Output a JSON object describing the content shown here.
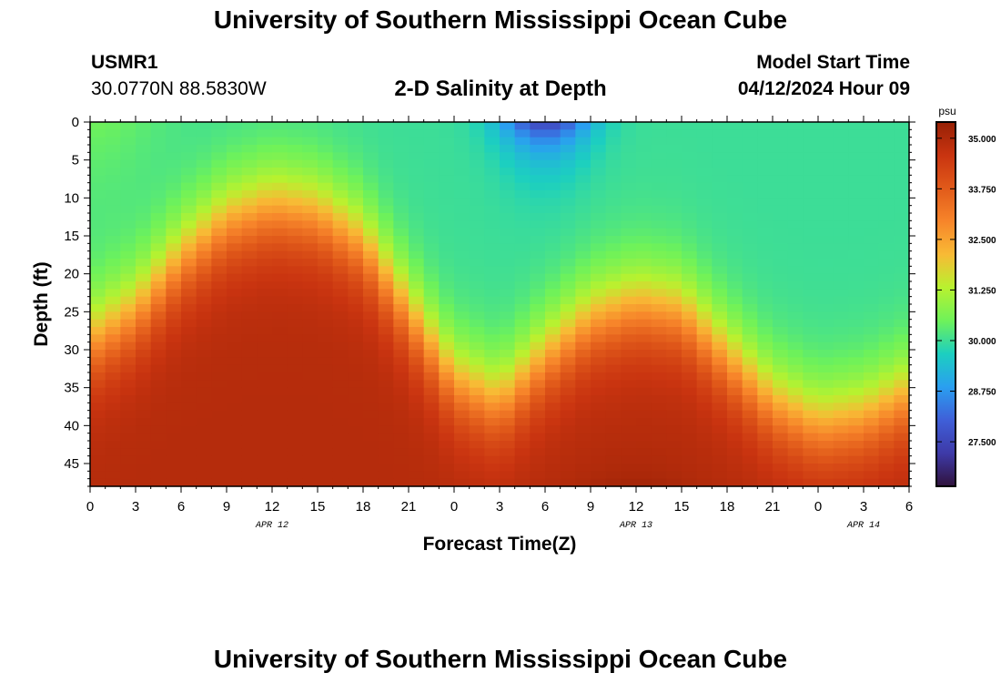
{
  "page": {
    "title_top": "University of Southern Mississippi Ocean Cube",
    "title_bottom": "University of Southern Mississippi Ocean Cube",
    "station_id": "USMR1",
    "station_coords": "30.0770N  88.5830W",
    "chart_title": "2-D Salinity at Depth",
    "model_start_label": "Model Start Time",
    "model_start_value": "04/12/2024 Hour 09"
  },
  "colors": {
    "background": "#ffffff",
    "colormap": [
      "#30123b",
      "#3e3aa8",
      "#3f5fd8",
      "#2a9ff0",
      "#1ccfc0",
      "#6ef25a",
      "#b8f22f",
      "#f8ba35",
      "#f7852a",
      "#e15a1a",
      "#c93410",
      "#962005"
    ]
  },
  "chart_data": {
    "type": "heatmap",
    "title": "2-D Salinity at Depth",
    "xlabel": "Forecast Time(Z)",
    "ylabel": "Depth (ft)",
    "x_tick_labels": [
      "0",
      "3",
      "6",
      "9",
      "12",
      "15",
      "18",
      "21",
      "0",
      "3",
      "6",
      "9",
      "12",
      "15",
      "18",
      "21",
      "0",
      "3",
      "6"
    ],
    "x_hours_from_start": [
      0,
      3,
      6,
      9,
      12,
      15,
      18,
      21,
      24,
      27,
      30,
      33,
      36,
      39,
      42,
      45,
      48,
      51,
      54
    ],
    "xlim_hours": [
      0,
      54
    ],
    "date_labels": [
      {
        "label": "APR 12",
        "hour": 12
      },
      {
        "label": "APR 13",
        "hour": 36
      },
      {
        "label": "APR 14",
        "hour": 51
      }
    ],
    "y_ticks": [
      0,
      5,
      10,
      15,
      20,
      25,
      30,
      35,
      40,
      45
    ],
    "ylim_ft": [
      0,
      48
    ],
    "y_inverted": true,
    "colorbar": {
      "unit": "psu",
      "vmin": 26.4,
      "vmax": 35.4,
      "tick_values": [
        35.0,
        33.75,
        32.5,
        31.25,
        30.0,
        28.75,
        27.5
      ],
      "tick_labels": [
        "35.000",
        "33.750",
        "32.500",
        "31.250",
        "30.000",
        "28.750",
        "27.500"
      ]
    },
    "halocline_depth_ft_by_hour": {
      "hours": [
        0,
        3,
        6,
        9,
        12,
        15,
        18,
        21,
        24,
        27,
        30,
        33,
        36,
        39,
        42,
        45,
        48,
        51,
        54
      ],
      "depths": [
        29,
        25,
        18,
        13,
        11,
        12,
        16,
        25,
        34,
        37,
        31,
        26,
        24,
        25,
        31,
        37,
        40,
        39,
        36
      ]
    },
    "surface_salinity_psu": 30.0,
    "bottom_salinity_psu": 34.9,
    "min_salinity_psu": 27.0,
    "min_location": {
      "hour": 30,
      "depth_ft": 0
    },
    "max_location": {
      "hour": 36,
      "depth_ft": 48
    }
  }
}
